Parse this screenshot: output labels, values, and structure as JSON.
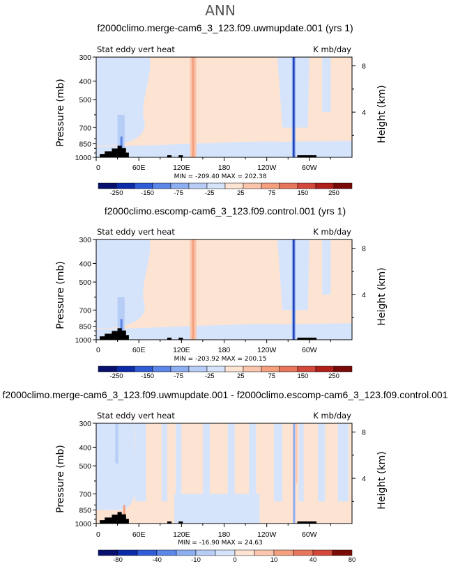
{
  "figure_title": "ANN",
  "palette": [
    "#08106e",
    "#0d2aa8",
    "#2f5bd7",
    "#5c86e8",
    "#8daef0",
    "#b7cdf6",
    "#d6e4fb",
    "#fde3d2",
    "#f9c6ad",
    "#f4a07f",
    "#e8765a",
    "#d3483a",
    "#b01f1a",
    "#7a0a08"
  ],
  "chart_data": [
    {
      "type": "contour",
      "title": "f2000climo.merge-cam6_3_123.f09.uwmupdate.001 (yrs 1)",
      "left_label": "Stat eddy vert heat",
      "right_label": "K mb/day",
      "ylabel": "Pressure (mb)",
      "ylabel_right": "Height (km)",
      "x_ticks": [
        "0",
        "60E",
        "120E",
        "180",
        "120W",
        "60W"
      ],
      "x_range": [
        0,
        360
      ],
      "y_ticks": [
        "300",
        "400",
        "500",
        "700",
        "850",
        "1000"
      ],
      "y_range_mb": [
        300,
        1000
      ],
      "y_ticks_right": [
        "8",
        "4"
      ],
      "min_max_text": "MIN = -209.40   MAX = 202.38",
      "colorbar_labels": [
        "-250",
        "-150",
        "-75",
        "-25",
        "25",
        "75",
        "150",
        "250"
      ],
      "features": [
        {
          "lon": 278,
          "kind": "strong_negative",
          "value": -209.4
        },
        {
          "lon": 136,
          "kind": "positive_band",
          "value": 75
        },
        {
          "lon": 35,
          "kind": "negative_band",
          "value": -75
        }
      ],
      "low_level_band": "negative"
    },
    {
      "type": "contour",
      "title": "f2000climo.escomp-cam6_3_123.f09.control.001 (yrs 1)",
      "left_label": "Stat eddy vert heat",
      "right_label": "K mb/day",
      "ylabel": "Pressure (mb)",
      "ylabel_right": "Height (km)",
      "x_ticks": [
        "0",
        "60E",
        "120E",
        "180",
        "120W",
        "60W"
      ],
      "x_range": [
        0,
        360
      ],
      "y_ticks": [
        "300",
        "400",
        "500",
        "700",
        "850",
        "1000"
      ],
      "y_range_mb": [
        300,
        1000
      ],
      "y_ticks_right": [
        "8",
        "4"
      ],
      "min_max_text": "MIN = -203.92   MAX = 200.15",
      "colorbar_labels": [
        "-250",
        "-150",
        "-75",
        "-25",
        "25",
        "75",
        "150",
        "250"
      ],
      "features": [
        {
          "lon": 278,
          "kind": "strong_negative",
          "value": -203.92
        },
        {
          "lon": 136,
          "kind": "positive_band",
          "value": 75
        },
        {
          "lon": 35,
          "kind": "negative_band",
          "value": -75
        }
      ],
      "low_level_band": "negative"
    },
    {
      "type": "contour",
      "title": "f2000climo.merge-cam6_3_123.f09.uwmupdate.001 - f2000climo.escomp-cam6_3_123.f09.control.001",
      "left_label": "Stat eddy vert heat",
      "right_label": "K mb/day",
      "ylabel": "Pressure (mb)",
      "ylabel_right": "Height (km)",
      "x_ticks": [
        "0",
        "60E",
        "120E",
        "180",
        "120W",
        "60W"
      ],
      "x_range": [
        0,
        360
      ],
      "y_ticks": [
        "300",
        "400",
        "500",
        "700",
        "850",
        "1000"
      ],
      "y_range_mb": [
        300,
        1000
      ],
      "y_ticks_right": [
        "8",
        "4"
      ],
      "min_max_text": "MIN = -16.90   MAX = 24.63",
      "colorbar_labels": [
        "-80",
        "-40",
        "-10",
        "0",
        "10",
        "40",
        "80"
      ],
      "features": [
        {
          "lon": 278,
          "kind": "weak_mixed",
          "value": -16.9
        },
        {
          "lon": 40,
          "kind": "weak_mixed",
          "value": 24.63
        }
      ],
      "low_level_band": "weak"
    }
  ]
}
